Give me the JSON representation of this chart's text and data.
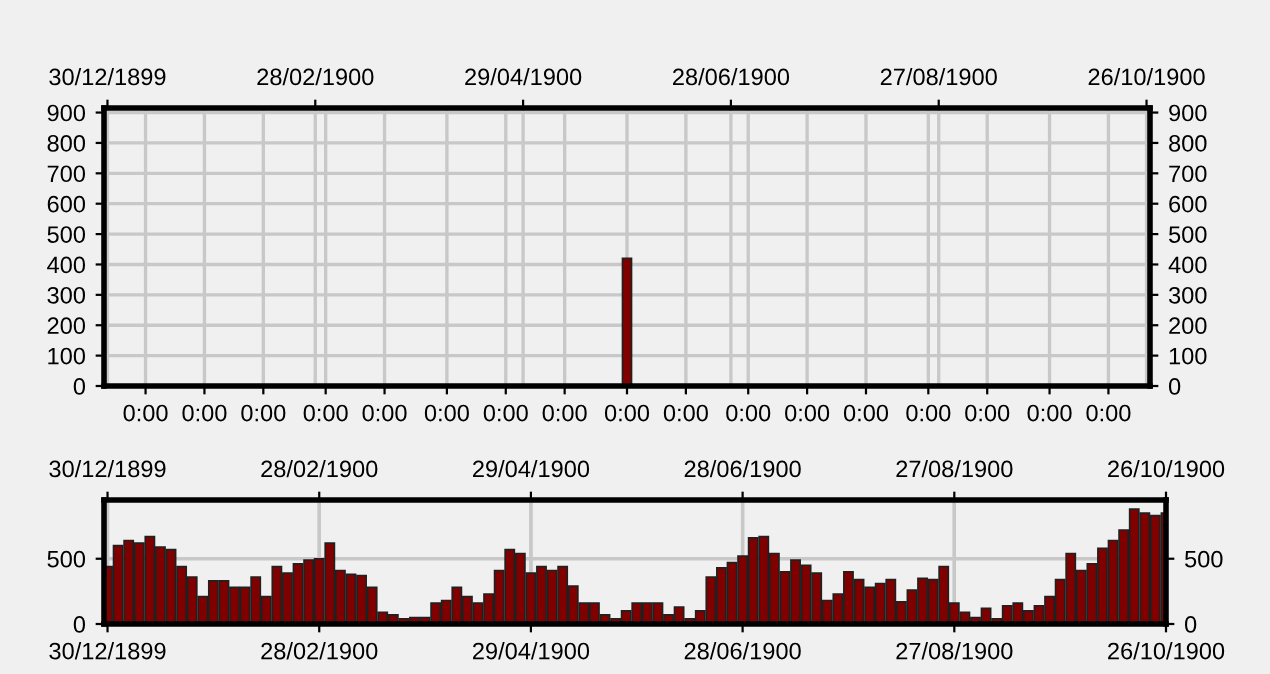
{
  "chart_data": [
    {
      "type": "bar",
      "x": [
        "1900-05-29"
      ],
      "series": [
        {
          "color": "#800000",
          "values": [
            420
          ]
        }
      ],
      "xlim": [
        "1899-12-29",
        "1900-10-27"
      ],
      "ylim": [
        0,
        915
      ],
      "xticks": [
        {
          "value": "1900-01-10",
          "label": "0:00"
        },
        {
          "value": "1900-01-27",
          "label": "0:00"
        },
        {
          "value": "1900-02-13",
          "label": "0:00"
        },
        {
          "value": "1900-03-03",
          "label": "0:00"
        },
        {
          "value": "1900-03-20",
          "label": "0:00"
        },
        {
          "value": "1900-04-07",
          "label": "0:00"
        },
        {
          "value": "1900-04-24",
          "label": "0:00"
        },
        {
          "value": "1900-05-11",
          "label": "0:00"
        },
        {
          "value": "1900-05-29",
          "label": "0:00"
        },
        {
          "value": "1900-06-15",
          "label": "0:00"
        },
        {
          "value": "1900-07-03",
          "label": "0:00"
        },
        {
          "value": "1900-07-20",
          "label": "0:00"
        },
        {
          "value": "1900-08-06",
          "label": "0:00"
        },
        {
          "value": "1900-08-24",
          "label": "0:00"
        },
        {
          "value": "1900-09-10",
          "label": "0:00"
        },
        {
          "value": "1900-09-28",
          "label": "0:00"
        },
        {
          "value": "1900-10-15",
          "label": "0:00"
        }
      ],
      "x2lim": [
        "1899-12-29",
        "1900-10-27"
      ],
      "x2ticks": [
        {
          "value": "1899-12-30",
          "label": "30/12/1899"
        },
        {
          "value": "1900-02-28",
          "label": "28/02/1900"
        },
        {
          "value": "1900-04-29",
          "label": "29/04/1900"
        },
        {
          "value": "1900-06-28",
          "label": "28/06/1900"
        },
        {
          "value": "1900-08-27",
          "label": "27/08/1900"
        },
        {
          "value": "1900-10-26",
          "label": "26/10/1900"
        }
      ],
      "yticks": [
        0,
        100,
        200,
        300,
        400,
        500,
        600,
        700,
        800,
        900
      ],
      "y2lim": [
        0,
        915
      ],
      "y2ticks": [
        0,
        100,
        200,
        300,
        400,
        500,
        600,
        700,
        800,
        900
      ],
      "grid": true,
      "legend": false
    },
    {
      "type": "bar",
      "x": [
        "1899-12-30",
        "1900-01-02",
        "1900-01-05",
        "1900-01-08",
        "1900-01-11",
        "1900-01-14",
        "1900-01-17",
        "1900-01-20",
        "1900-01-23",
        "1900-01-26",
        "1900-01-29",
        "1900-02-01",
        "1900-02-04",
        "1900-02-07",
        "1900-02-10",
        "1900-02-13",
        "1900-02-16",
        "1900-02-19",
        "1900-02-22",
        "1900-02-25",
        "1900-02-28",
        "1900-03-03",
        "1900-03-06",
        "1900-03-09",
        "1900-03-12",
        "1900-03-15",
        "1900-03-18",
        "1900-03-21",
        "1900-03-24",
        "1900-03-27",
        "1900-03-30",
        "1900-04-02",
        "1900-04-05",
        "1900-04-08",
        "1900-04-11",
        "1900-04-14",
        "1900-04-17",
        "1900-04-20",
        "1900-04-23",
        "1900-04-26",
        "1900-04-29",
        "1900-05-02",
        "1900-05-05",
        "1900-05-08",
        "1900-05-11",
        "1900-05-14",
        "1900-05-17",
        "1900-05-20",
        "1900-05-23",
        "1900-05-26",
        "1900-05-29",
        "1900-06-01",
        "1900-06-04",
        "1900-06-07",
        "1900-06-10",
        "1900-06-13",
        "1900-06-16",
        "1900-06-19",
        "1900-06-22",
        "1900-06-25",
        "1900-06-28",
        "1900-07-01",
        "1900-07-04",
        "1900-07-07",
        "1900-07-10",
        "1900-07-13",
        "1900-07-16",
        "1900-07-19",
        "1900-07-22",
        "1900-07-25",
        "1900-07-28",
        "1900-07-31",
        "1900-08-03",
        "1900-08-06",
        "1900-08-09",
        "1900-08-12",
        "1900-08-15",
        "1900-08-18",
        "1900-08-21",
        "1900-08-24",
        "1900-08-27",
        "1900-08-30",
        "1900-09-02",
        "1900-09-05",
        "1900-09-08",
        "1900-09-11",
        "1900-09-14",
        "1900-09-17",
        "1900-09-20",
        "1900-09-23",
        "1900-09-26",
        "1900-09-29",
        "1900-10-02",
        "1900-10-05",
        "1900-10-08",
        "1900-10-11",
        "1900-10-14",
        "1900-10-17",
        "1900-10-20",
        "1900-10-23",
        "1900-10-26"
      ],
      "series": [
        {
          "color": "#800000",
          "values": [
            440,
            600,
            640,
            620,
            670,
            590,
            570,
            440,
            360,
            210,
            330,
            330,
            280,
            280,
            360,
            210,
            440,
            390,
            460,
            490,
            500,
            620,
            410,
            380,
            370,
            280,
            90,
            70,
            40,
            50,
            50,
            160,
            180,
            280,
            210,
            160,
            230,
            410,
            570,
            540,
            390,
            440,
            410,
            440,
            290,
            160,
            160,
            70,
            40,
            100,
            160,
            160,
            160,
            70,
            130,
            40,
            100,
            360,
            430,
            470,
            520,
            660,
            670,
            540,
            400,
            490,
            450,
            390,
            180,
            230,
            400,
            340,
            280,
            310,
            340,
            170,
            260,
            350,
            340,
            440,
            160,
            90,
            50,
            120,
            40,
            140,
            160,
            100,
            140,
            210,
            340,
            540,
            410,
            460,
            580,
            640,
            720,
            880,
            850,
            830,
            850
          ]
        }
      ],
      "xlim": [
        "1899-12-29",
        "1900-10-26"
      ],
      "ylim": [
        0,
        950
      ],
      "xticks": [
        {
          "value": "1899-12-30",
          "label": "30/12/1899"
        },
        {
          "value": "1900-02-28",
          "label": "28/02/1900"
        },
        {
          "value": "1900-04-29",
          "label": "29/04/1900"
        },
        {
          "value": "1900-06-28",
          "label": "28/06/1900"
        },
        {
          "value": "1900-08-27",
          "label": "27/08/1900"
        },
        {
          "value": "1900-10-26",
          "label": "26/10/1900"
        }
      ],
      "x2lim": [
        "1899-12-29",
        "1900-10-26"
      ],
      "x2ticks": [
        {
          "value": "1899-12-30",
          "label": "30/12/1899"
        },
        {
          "value": "1900-02-28",
          "label": "28/02/1900"
        },
        {
          "value": "1900-04-29",
          "label": "29/04/1900"
        },
        {
          "value": "1900-06-28",
          "label": "28/06/1900"
        },
        {
          "value": "1900-08-27",
          "label": "27/08/1900"
        },
        {
          "value": "1900-10-26",
          "label": "26/10/1900"
        }
      ],
      "yticks": [
        0,
        500
      ],
      "y2lim": [
        0,
        950
      ],
      "y2ticks": [
        0,
        500
      ],
      "grid": true,
      "legend": false
    }
  ]
}
